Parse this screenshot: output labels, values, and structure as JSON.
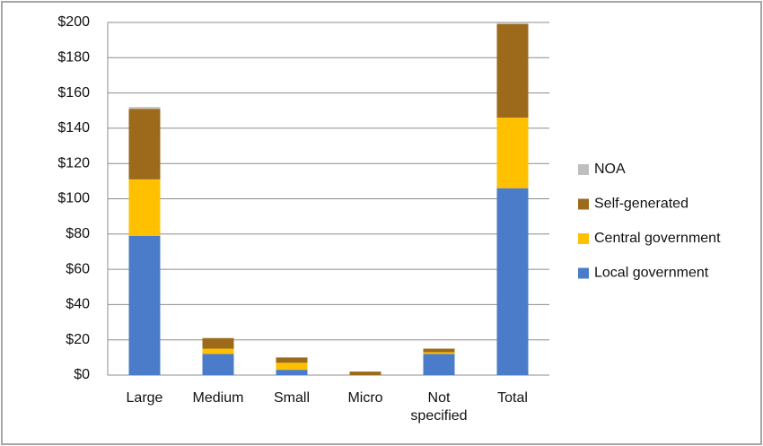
{
  "chart_data": {
    "type": "bar",
    "stacked": true,
    "categories": [
      "Large",
      "Medium",
      "Small",
      "Micro",
      "Not specified",
      "Total"
    ],
    "series": [
      {
        "name": "Local government",
        "color": "#4a7cc9",
        "values": [
          79,
          12,
          3,
          0,
          12,
          106
        ]
      },
      {
        "name": "Central government",
        "color": "#ffc000",
        "values": [
          32,
          3,
          4,
          0,
          1,
          40
        ]
      },
      {
        "name": "Self-generated",
        "color": "#9c6a1a",
        "values": [
          40,
          6,
          3,
          2,
          2,
          53
        ]
      },
      {
        "name": "NOA",
        "color": "#bfbfbf",
        "values": [
          1,
          0,
          0,
          0,
          0,
          1
        ]
      }
    ],
    "ylim": [
      0,
      200
    ],
    "yticks": [
      {
        "value": 0,
        "label": "$0"
      },
      {
        "value": 20,
        "label": "$20"
      },
      {
        "value": 40,
        "label": "$40"
      },
      {
        "value": 60,
        "label": "$60"
      },
      {
        "value": 80,
        "label": "$80"
      },
      {
        "value": 100,
        "label": "$100"
      },
      {
        "value": 120,
        "label": "$120"
      },
      {
        "value": 140,
        "label": "$140"
      },
      {
        "value": 160,
        "label": "$160"
      },
      {
        "value": 180,
        "label": "$180"
      },
      {
        "value": 200,
        "label": "$200"
      }
    ],
    "grid": true,
    "legend": "right"
  }
}
